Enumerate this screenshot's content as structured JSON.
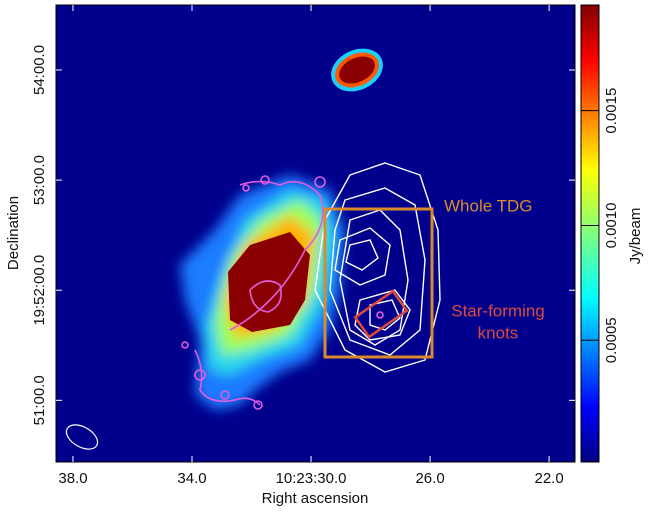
{
  "chart_data": {
    "type": "image",
    "xlabel": "Right ascension",
    "ylabel": "Declination",
    "colorbar_label": "Jy/beam",
    "xlim": [
      38.57,
      21.13
    ],
    "xticks": [
      {
        "value": 38,
        "label": "38.0"
      },
      {
        "value": 34,
        "label": "34.0"
      },
      {
        "value": 30,
        "label": "10:23:30.0"
      },
      {
        "value": 26,
        "label": "26.0"
      },
      {
        "value": 22,
        "label": "22.0"
      }
    ],
    "ylim": [
      50.44,
      54.59
    ],
    "yticks": [
      {
        "value": 54,
        "label": "54:00.0"
      },
      {
        "value": 53,
        "label": "53:00.0"
      },
      {
        "value": 52,
        "label": "19:52:00.0"
      },
      {
        "value": 51,
        "label": "51:00.0"
      }
    ],
    "clim": [
      -3e-05,
      0.00196
    ],
    "cticks": [
      0.0005,
      {
        "value": 0.001,
        "label": "0.0010"
      },
      {
        "value": 0.0015,
        "label": "0.0015"
      }
    ],
    "annotations": [
      {
        "text": "Whole TDG",
        "color": "#d98b2b"
      },
      {
        "text": "Star-forming",
        "color": "#de4a3c"
      },
      {
        "text": "knots",
        "color": "#de4a3c"
      }
    ]
  }
}
